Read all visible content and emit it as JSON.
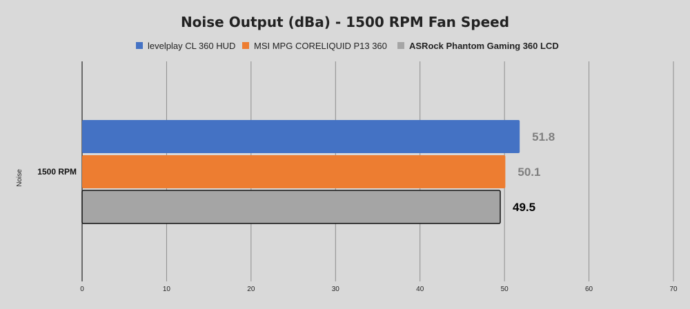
{
  "chart_data": {
    "type": "bar",
    "orientation": "horizontal",
    "title": "Noise Output (dBa) - 1500 RPM Fan Speed",
    "ylabel": "Noise",
    "categories": [
      "1500 RPM"
    ],
    "xlim": [
      0,
      70
    ],
    "xticks": [
      0,
      10,
      20,
      30,
      40,
      50,
      60,
      70
    ],
    "grid": true,
    "legend_position": "top",
    "series": [
      {
        "name": "levelplay CL 360 HUD",
        "values": [
          51.8
        ],
        "color": "#4472c4",
        "label_color": "#7f7f7f",
        "label_bold": false
      },
      {
        "name": "MSI MPG CORELIQUID P13 360",
        "values": [
          50.1
        ],
        "color": "#ed7d31",
        "label_color": "#7f7f7f",
        "label_bold": false
      },
      {
        "name": "ASRock Phantom Gaming 360 LCD",
        "values": [
          49.5
        ],
        "color": "#a5a5a5",
        "label_color": "#000000",
        "label_bold": true
      }
    ]
  }
}
